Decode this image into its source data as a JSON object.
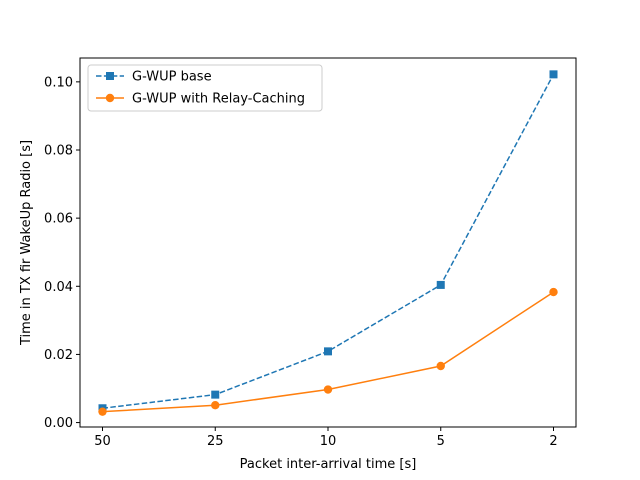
{
  "chart_data": {
    "type": "line",
    "categories": [
      "50",
      "25",
      "10",
      "5",
      "2"
    ],
    "xlabel": "Packet inter-arrival time [s]",
    "ylabel": "Time in TX fir WakeUp Radio [s]",
    "ylim": [
      -0.0013,
      0.107
    ],
    "yticks": [
      "0.00",
      "0.02",
      "0.04",
      "0.06",
      "0.08",
      "0.10"
    ],
    "grid": false,
    "legend_position": "top-left",
    "series": [
      {
        "name": "G-WUP base",
        "values": [
          0.0042,
          0.0082,
          0.0209,
          0.0404,
          0.1022
        ],
        "color": "#1f77b4",
        "linestyle": "dashed",
        "marker": "square"
      },
      {
        "name": "G-WUP with Relay-Caching",
        "values": [
          0.0032,
          0.0051,
          0.0097,
          0.0166,
          0.0383
        ],
        "color": "#ff7f0e",
        "linestyle": "solid",
        "marker": "circle"
      }
    ]
  }
}
